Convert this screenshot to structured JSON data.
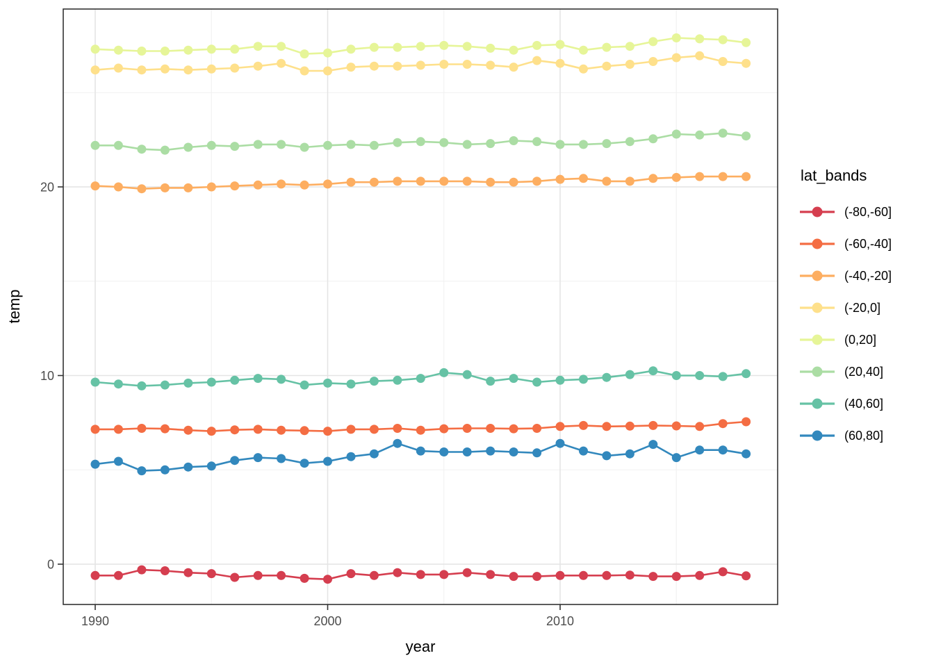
{
  "chart_data": {
    "type": "line",
    "title": "",
    "xlabel": "year",
    "ylabel": "temp",
    "legend_title": "lat_bands",
    "legend_position": "right",
    "grid": true,
    "xlim": [
      1988.6,
      2019.4
    ],
    "ylim": [
      -2.2,
      29.3
    ],
    "x_ticks": [
      1990,
      2000,
      2010
    ],
    "y_ticks": [
      0,
      10,
      20
    ],
    "x_minor_gridlines": [
      1995,
      2005,
      2015
    ],
    "y_minor_gridlines": [
      5,
      15,
      25
    ],
    "x": [
      1990,
      1991,
      1992,
      1993,
      1994,
      1995,
      1996,
      1997,
      1998,
      1999,
      2000,
      2001,
      2002,
      2003,
      2004,
      2005,
      2006,
      2007,
      2008,
      2009,
      2010,
      2011,
      2012,
      2013,
      2014,
      2015,
      2016,
      2017,
      2018
    ],
    "series": [
      {
        "name": "(-80,-60]",
        "color": "#D53E4F",
        "values": [
          -0.6,
          -0.6,
          -0.3,
          -0.35,
          -0.45,
          -0.5,
          -0.7,
          -0.6,
          -0.6,
          -0.75,
          -0.8,
          -0.5,
          -0.6,
          -0.45,
          -0.55,
          -0.55,
          -0.45,
          -0.55,
          -0.65,
          -0.65,
          -0.6,
          -0.6,
          -0.6,
          -0.58,
          -0.65,
          -0.65,
          -0.6,
          -0.4,
          -0.62
        ]
      },
      {
        "name": "(-60,-40]",
        "color": "#F46D43",
        "values": [
          7.15,
          7.15,
          7.2,
          7.18,
          7.1,
          7.05,
          7.12,
          7.15,
          7.1,
          7.08,
          7.05,
          7.15,
          7.15,
          7.2,
          7.1,
          7.18,
          7.2,
          7.2,
          7.18,
          7.2,
          7.3,
          7.35,
          7.3,
          7.32,
          7.35,
          7.33,
          7.3,
          7.45,
          7.55
        ]
      },
      {
        "name": "(-40,-20]",
        "color": "#FDAE61",
        "values": [
          20.05,
          20.0,
          19.9,
          19.95,
          19.95,
          20.0,
          20.05,
          20.1,
          20.15,
          20.1,
          20.15,
          20.25,
          20.25,
          20.3,
          20.3,
          20.3,
          20.3,
          20.25,
          20.25,
          20.3,
          20.4,
          20.45,
          20.3,
          20.3,
          20.45,
          20.5,
          20.55,
          20.55,
          20.55
        ]
      },
      {
        "name": "(-20,0]",
        "color": "#FEE08B",
        "values": [
          26.2,
          26.3,
          26.2,
          26.25,
          26.2,
          26.25,
          26.3,
          26.4,
          26.55,
          26.15,
          26.15,
          26.35,
          26.4,
          26.4,
          26.45,
          26.5,
          26.5,
          26.45,
          26.35,
          26.7,
          26.55,
          26.25,
          26.4,
          26.5,
          26.65,
          26.85,
          26.95,
          26.65,
          26.55
        ]
      },
      {
        "name": "(0,20]",
        "color": "#E6F598",
        "values": [
          27.3,
          27.25,
          27.2,
          27.2,
          27.25,
          27.3,
          27.3,
          27.45,
          27.45,
          27.05,
          27.1,
          27.3,
          27.4,
          27.4,
          27.45,
          27.5,
          27.45,
          27.35,
          27.25,
          27.5,
          27.55,
          27.25,
          27.4,
          27.45,
          27.7,
          27.9,
          27.85,
          27.8,
          27.65
        ]
      },
      {
        "name": "(20,40]",
        "color": "#ABDDA4",
        "values": [
          22.2,
          22.2,
          22.0,
          21.95,
          22.1,
          22.2,
          22.15,
          22.25,
          22.25,
          22.1,
          22.2,
          22.25,
          22.2,
          22.35,
          22.4,
          22.35,
          22.25,
          22.3,
          22.45,
          22.4,
          22.25,
          22.25,
          22.3,
          22.4,
          22.55,
          22.8,
          22.75,
          22.85,
          22.7
        ]
      },
      {
        "name": "(40,60]",
        "color": "#66C2A5",
        "values": [
          9.65,
          9.55,
          9.45,
          9.5,
          9.6,
          9.65,
          9.75,
          9.85,
          9.8,
          9.5,
          9.6,
          9.55,
          9.7,
          9.75,
          9.85,
          10.15,
          10.05,
          9.7,
          9.85,
          9.65,
          9.75,
          9.8,
          9.9,
          10.05,
          10.25,
          10.0,
          10.0,
          9.95,
          10.1
        ]
      },
      {
        "name": "(60,80]",
        "color": "#3288BD",
        "values": [
          5.3,
          5.45,
          4.95,
          5.0,
          5.15,
          5.2,
          5.5,
          5.65,
          5.6,
          5.35,
          5.45,
          5.7,
          5.85,
          6.4,
          6.0,
          5.95,
          5.95,
          6.0,
          5.95,
          5.9,
          6.4,
          6.0,
          5.75,
          5.85,
          6.35,
          5.65,
          6.05,
          6.05,
          5.85
        ]
      }
    ],
    "style_colors": {
      "panel_background": "#ffffff",
      "panel_border": "#333333",
      "major_gridline": "#e4e4e4",
      "minor_gridline": "#f1f1f1",
      "tick_mark": "#333333",
      "tick_label": "#4d4d4d",
      "axis_title": "#000000"
    }
  }
}
